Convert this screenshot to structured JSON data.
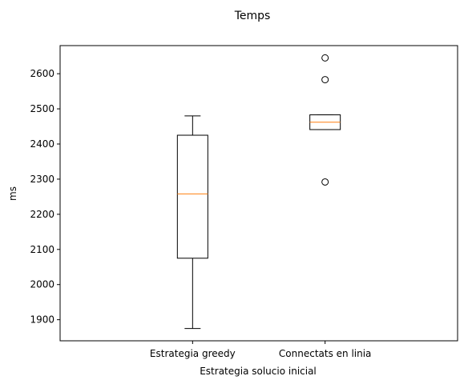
{
  "chart_data": {
    "type": "boxplot",
    "title": "Temps",
    "xlabel": "Estrategia solucio inicial",
    "ylabel": "ms",
    "ylim": [
      1840,
      2680
    ],
    "yticks": [
      1900,
      2000,
      2100,
      2200,
      2300,
      2400,
      2500,
      2600
    ],
    "categories": [
      "Estrategia greedy",
      "Connectats en linia"
    ],
    "series": [
      {
        "whisker_low": 1875,
        "q1": 2075,
        "median": 2258,
        "q3": 2425,
        "whisker_high": 2480,
        "outliers": []
      },
      {
        "whisker_low": 2441,
        "q1": 2441,
        "median": 2462,
        "q3": 2483,
        "whisker_high": 2483,
        "outliers": [
          2645,
          2583,
          2292
        ]
      }
    ],
    "colors": {
      "box": "#000000",
      "median": "#ff7f0e",
      "outlier": "#000000"
    },
    "grid": false,
    "legend": "none"
  }
}
